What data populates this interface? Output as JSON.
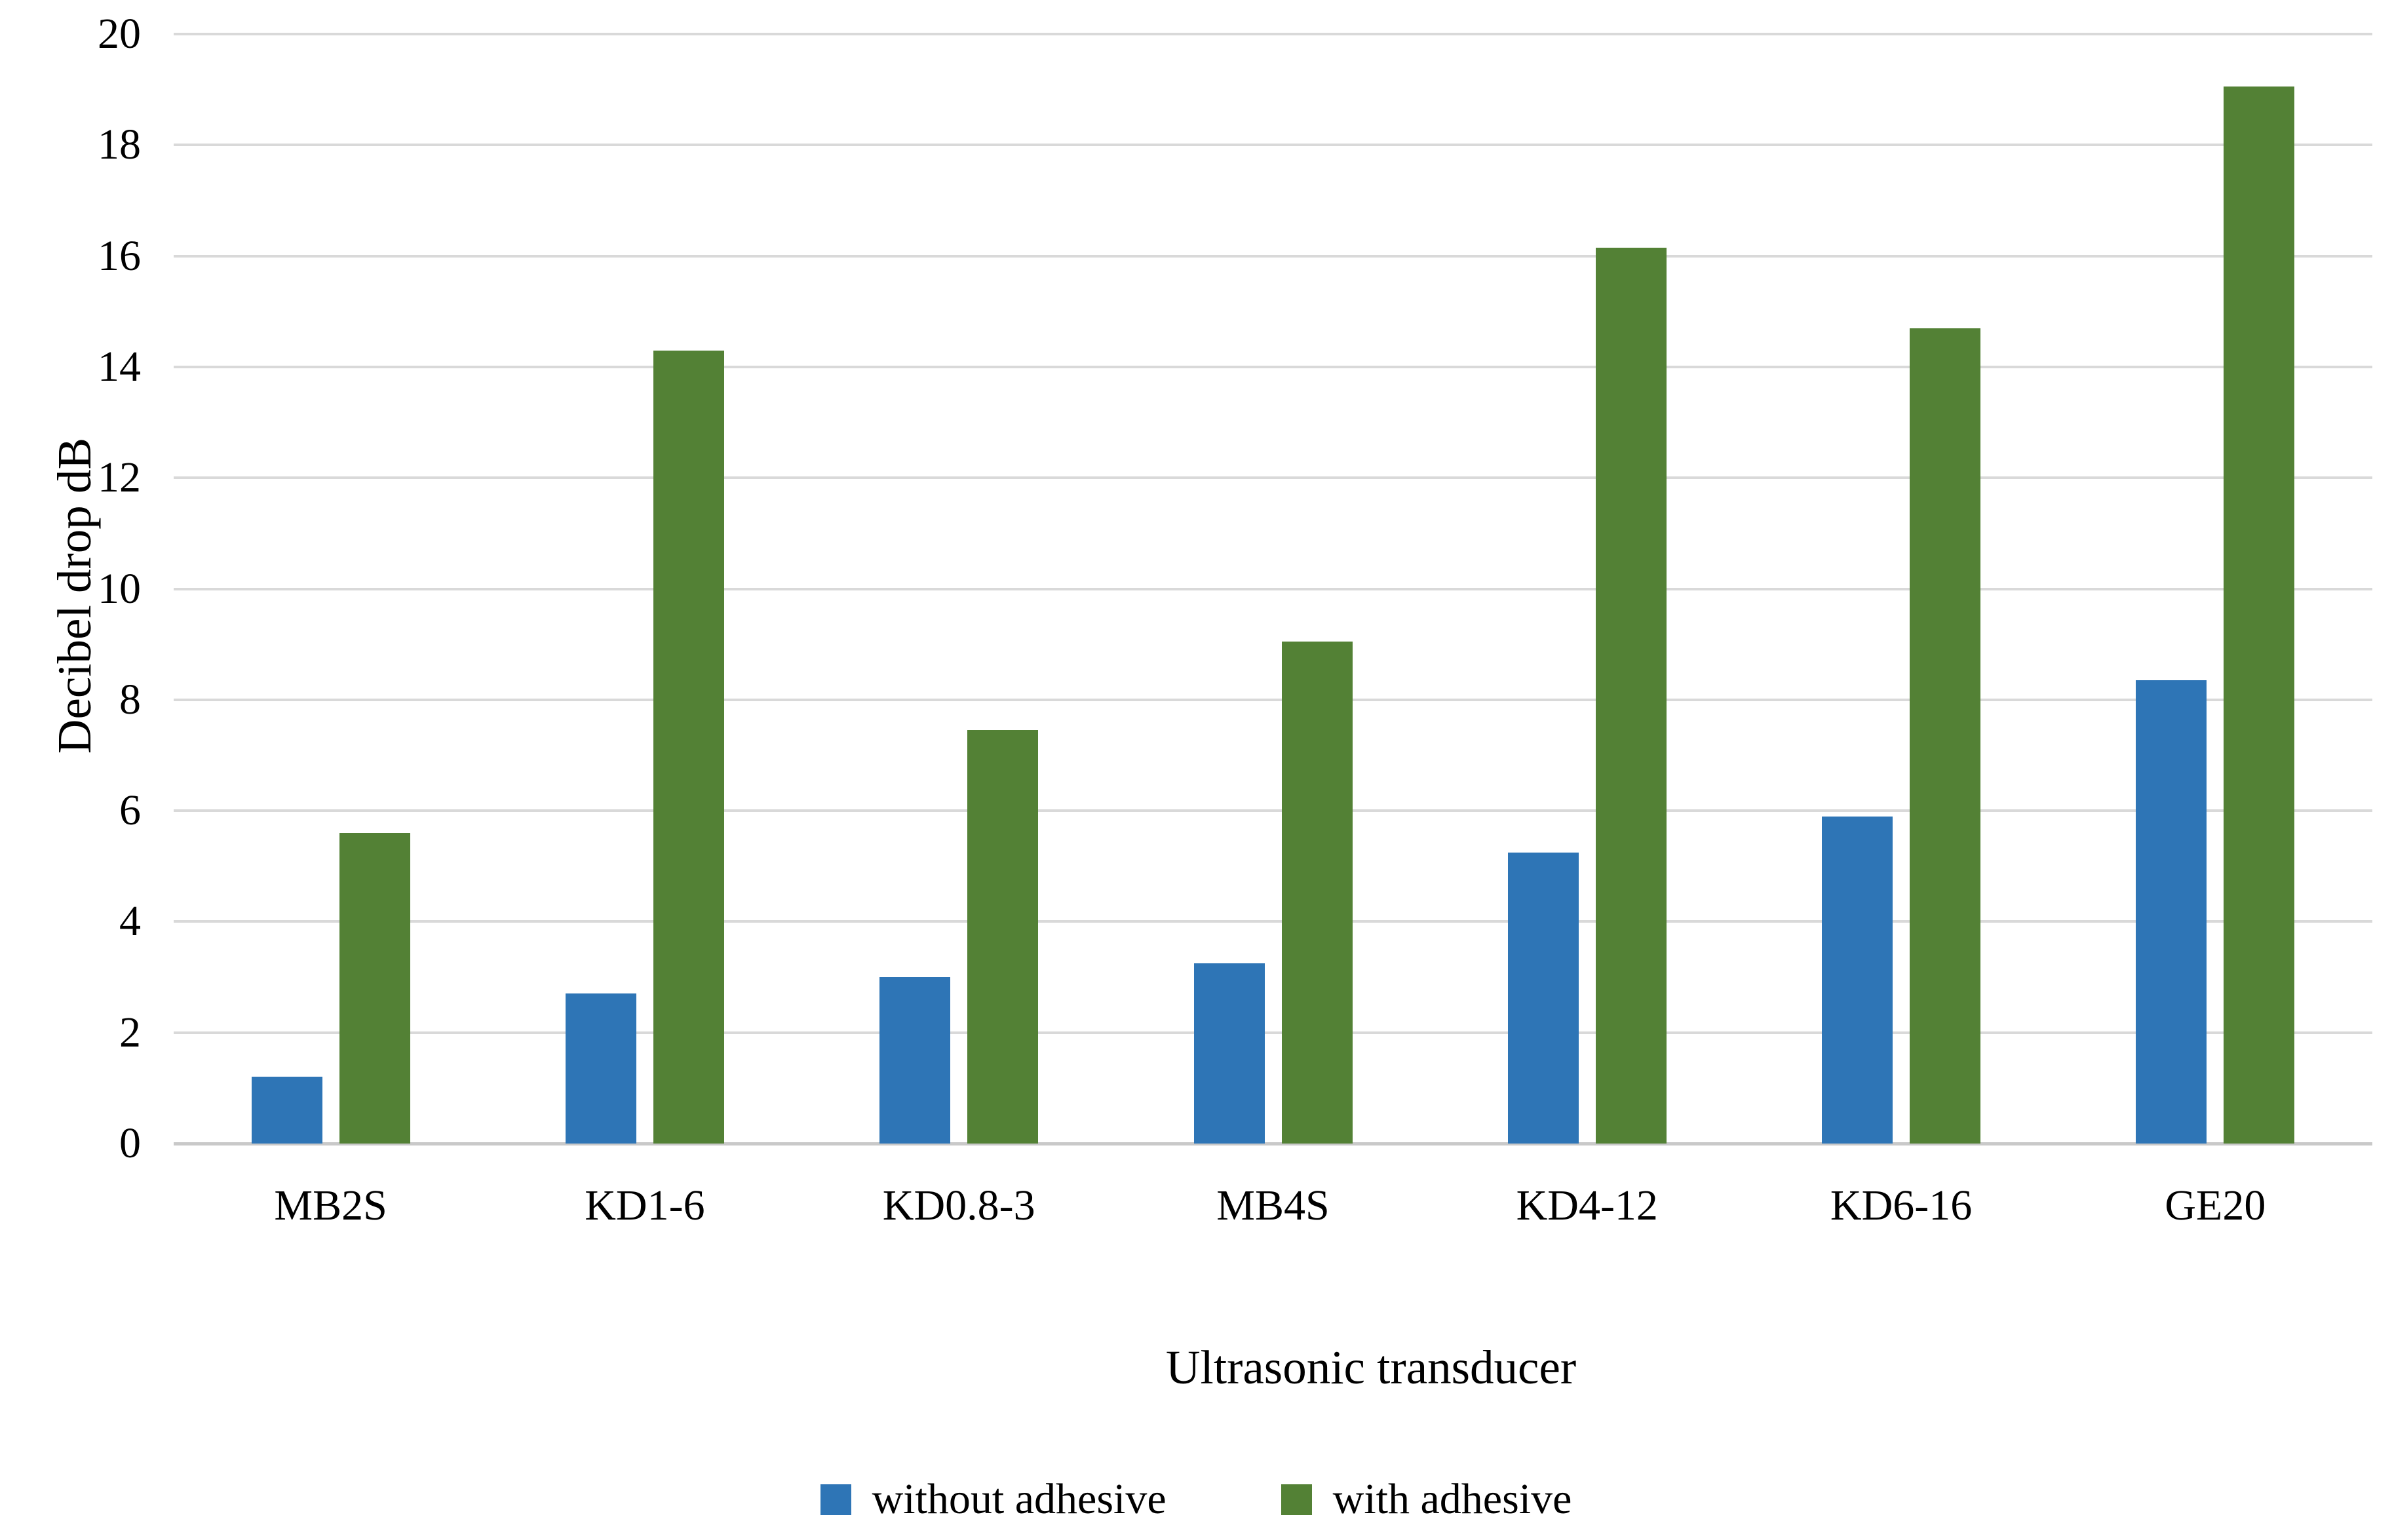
{
  "chart_data": {
    "type": "bar",
    "title": "",
    "xlabel": "Ultrasonic transducer",
    "ylabel": "Decibel drop dB",
    "categories": [
      "MB2S",
      "KD1-6",
      "KD0.8-3",
      "MB4S",
      "KD4-12",
      "KD6-16",
      "GE20"
    ],
    "series": [
      {
        "name": "without adhesive",
        "color": "#2E75B6",
        "values": [
          1.2,
          2.7,
          3.0,
          3.25,
          5.25,
          5.9,
          8.35
        ]
      },
      {
        "name": "with adhesive",
        "color": "#538135",
        "values": [
          5.6,
          14.3,
          7.45,
          9.05,
          16.15,
          14.7,
          19.05
        ]
      }
    ],
    "ylim": [
      0,
      20
    ],
    "yticks": [
      0,
      2,
      4,
      6,
      8,
      10,
      12,
      14,
      16,
      18,
      20
    ],
    "grid": "horizontal gridlines on, no vertical axis line",
    "gridline_color": "#D9D9D9",
    "background_color": "#FFFFFF",
    "legend_position": "bottom"
  }
}
